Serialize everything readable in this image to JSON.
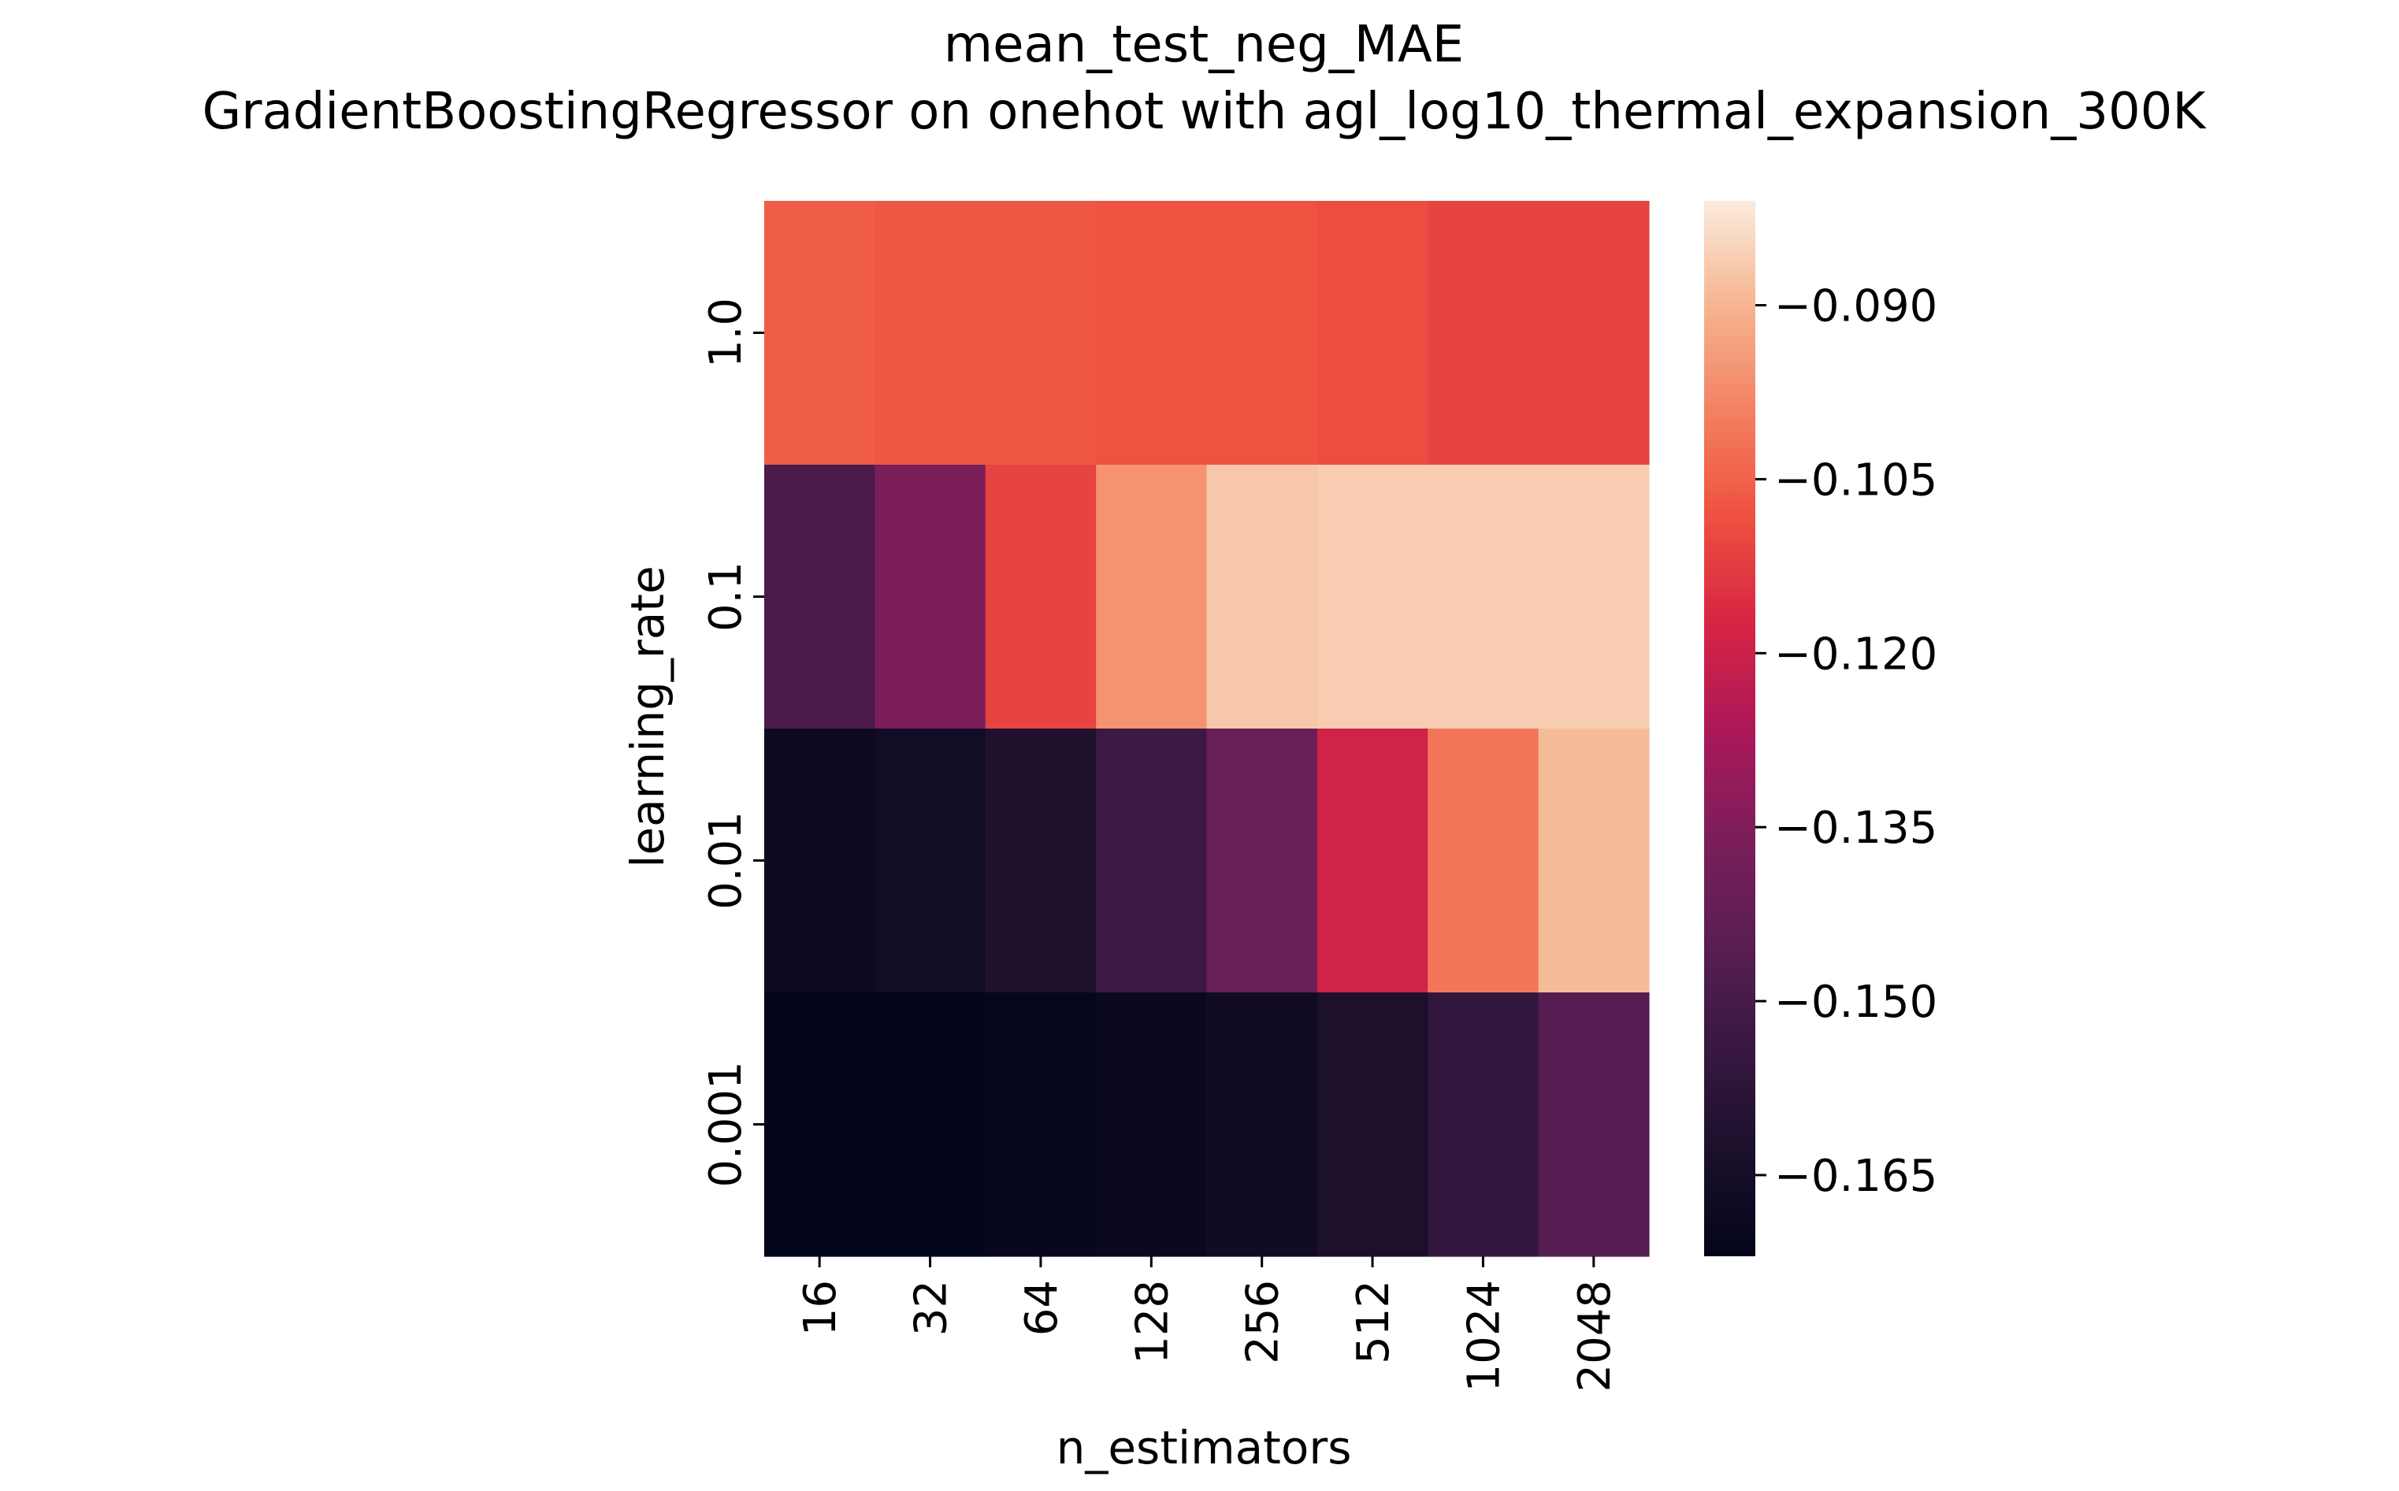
{
  "chart_data": {
    "type": "heatmap",
    "title": "mean_test_neg_MAE",
    "subtitle": "GradientBoostingRegressor on onehot with agl_log10_thermal_expansion_300K",
    "xlabel": "n_estimators",
    "ylabel": "learning_rate",
    "x_categories": [
      "16",
      "32",
      "64",
      "128",
      "256",
      "512",
      "1024",
      "2048"
    ],
    "y_categories": [
      "1.0",
      "0.1",
      "0.01",
      "0.001"
    ],
    "values": [
      [
        -0.106,
        -0.107,
        -0.107,
        -0.108,
        -0.108,
        -0.109,
        -0.111,
        -0.111
      ],
      [
        -0.149,
        -0.136,
        -0.111,
        -0.096,
        -0.087,
        -0.086,
        -0.086,
        -0.086
      ],
      [
        -0.168,
        -0.166,
        -0.162,
        -0.153,
        -0.141,
        -0.119,
        -0.101,
        -0.089
      ],
      [
        -0.172,
        -0.172,
        -0.171,
        -0.169,
        -0.167,
        -0.163,
        -0.156,
        -0.146
      ]
    ],
    "colormap": "rocket",
    "colorbar": {
      "vmin": -0.172,
      "vmax": -0.081,
      "ticks": [
        -0.165,
        -0.15,
        -0.135,
        -0.12,
        -0.105,
        -0.09
      ],
      "tick_labels": [
        "−0.165",
        "−0.150",
        "−0.135",
        "−0.120",
        "−0.105",
        "−0.090"
      ]
    },
    "grid": false,
    "legend": "none"
  }
}
